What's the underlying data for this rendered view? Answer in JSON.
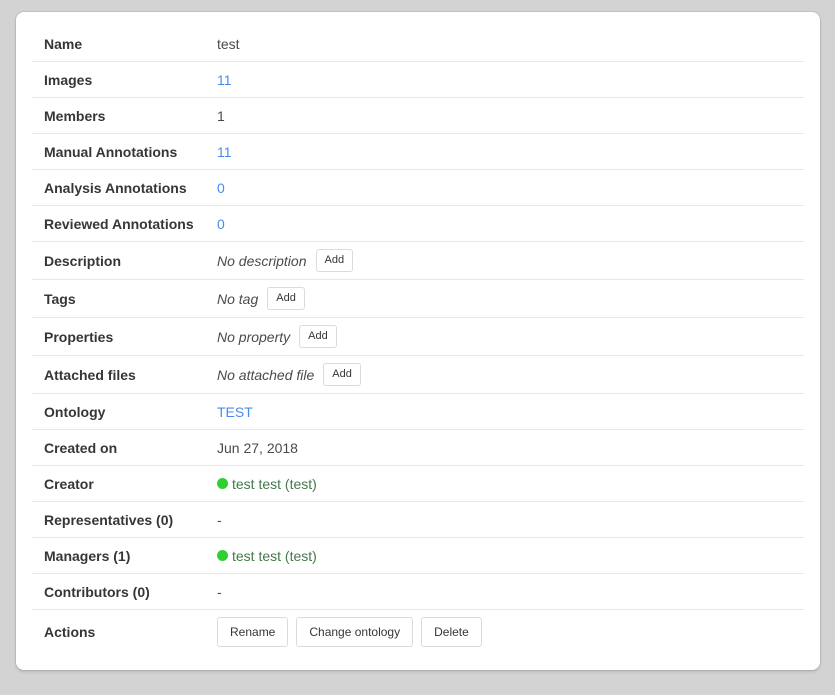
{
  "colors": {
    "page_bg": "#d3d3d3",
    "card_bg": "#ffffff",
    "row_border": "#e8e8e8",
    "label_text": "#363636",
    "value_text": "#4a4a4a",
    "link": "#4a8af0",
    "online_dot": "#32cd32",
    "online_user_text": "#45794a",
    "danger_bg": "#ff3860",
    "danger_text": "#ffffff"
  },
  "rows": [
    {
      "label": "Name",
      "type": "text",
      "value": "test"
    },
    {
      "label": "Images",
      "type": "link",
      "value": "11"
    },
    {
      "label": "Members",
      "type": "text",
      "value": "1"
    },
    {
      "label": "Manual Annotations",
      "type": "link",
      "value": "11"
    },
    {
      "label": "Analysis Annotations",
      "type": "link",
      "value": "0"
    },
    {
      "label": "Reviewed Annotations",
      "type": "link",
      "value": "0"
    },
    {
      "label": "Description",
      "type": "empty",
      "value": "No description",
      "button": "Add"
    },
    {
      "label": "Tags",
      "type": "empty",
      "value": "No tag",
      "button": "Add"
    },
    {
      "label": "Properties",
      "type": "empty",
      "value": "No property",
      "button": "Add"
    },
    {
      "label": "Attached files",
      "type": "empty",
      "value": "No attached file",
      "button": "Add"
    },
    {
      "label": "Ontology",
      "type": "link",
      "value": "TEST"
    },
    {
      "label": "Created on",
      "type": "text",
      "value": "Jun 27, 2018"
    },
    {
      "label": "Creator",
      "type": "user",
      "value": "test test (test)",
      "status_icon": "online-dot"
    },
    {
      "label": "Representatives (0)",
      "type": "text",
      "value": "-"
    },
    {
      "label": "Managers (1)",
      "type": "user",
      "value": "test test (test)",
      "status_icon": "online-dot"
    },
    {
      "label": "Contributors (0)",
      "type": "text",
      "value": "-"
    },
    {
      "label": "Actions",
      "type": "actions",
      "buttons": [
        {
          "label": "Rename",
          "style": "default"
        },
        {
          "label": "Change ontology",
          "style": "default"
        },
        {
          "label": "Delete",
          "style": "danger"
        }
      ]
    }
  ]
}
